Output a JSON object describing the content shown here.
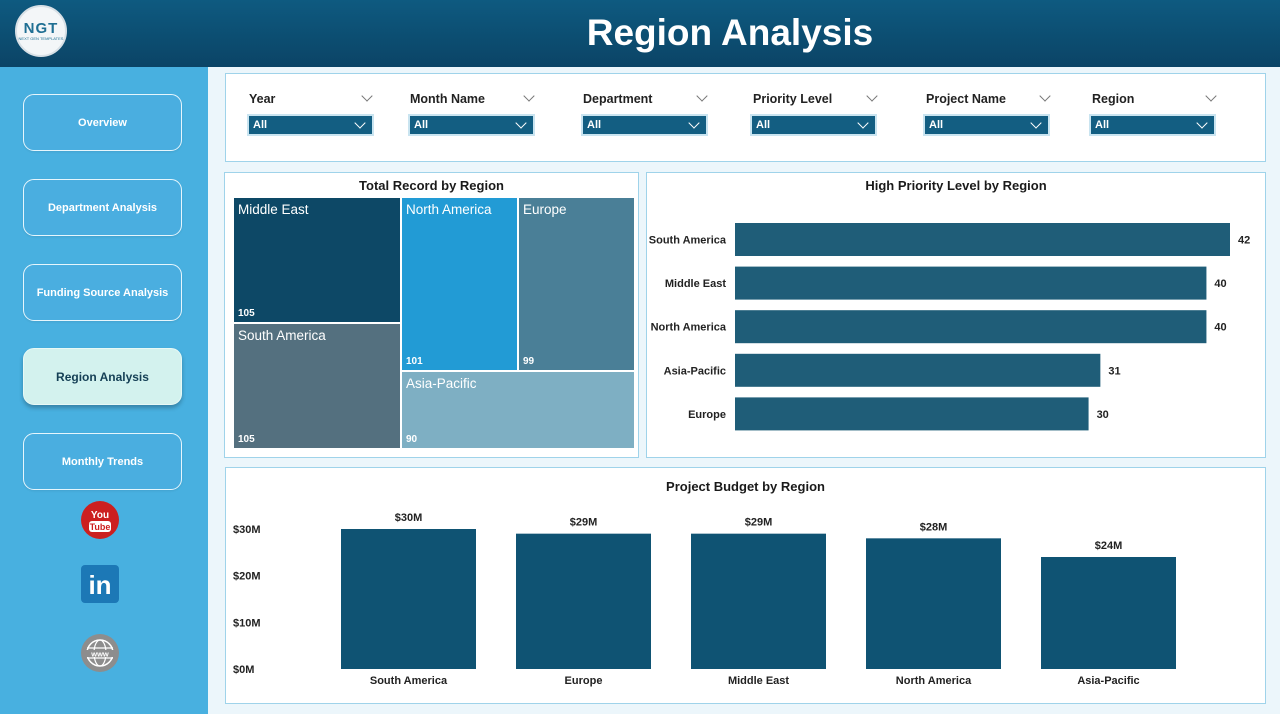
{
  "header": {
    "logo_text": "NGT",
    "logo_subtext": "NEXT GEN TEMPLATES",
    "title": "Region Analysis"
  },
  "sidebar": {
    "items": [
      {
        "label": "Overview",
        "active": false
      },
      {
        "label": "Department Analysis",
        "active": false
      },
      {
        "label": "Funding Source Analysis",
        "active": false
      },
      {
        "label": "Region Analysis",
        "active": true
      },
      {
        "label": "Monthly Trends",
        "active": false
      }
    ],
    "social": [
      {
        "icon": "youtube-icon",
        "text": "You Tube"
      },
      {
        "icon": "linkedin-icon",
        "text": "in"
      },
      {
        "icon": "website-icon",
        "text": "www"
      }
    ]
  },
  "filters": [
    {
      "label": "Year",
      "value": "All"
    },
    {
      "label": "Month Name",
      "value": "All"
    },
    {
      "label": "Department",
      "value": "All"
    },
    {
      "label": "Priority Level",
      "value": "All"
    },
    {
      "label": "Project Name",
      "value": "All"
    },
    {
      "label": "Region",
      "value": "All"
    }
  ],
  "treemap": {
    "title": "Total Record by Region",
    "tiles": [
      {
        "name": "Middle East",
        "value": "105",
        "color": "#0d4866"
      },
      {
        "name": "North America",
        "value": "101",
        "color": "#229bd5"
      },
      {
        "name": "Europe",
        "value": "99",
        "color": "#4a7f97"
      },
      {
        "name": "South America",
        "value": "105",
        "color": "#54707f"
      },
      {
        "name": "Asia-Pacific",
        "value": "90",
        "color": "#7eafc3"
      }
    ]
  },
  "chart_data": [
    {
      "type": "bar",
      "orientation": "horizontal",
      "title": "High Priority Level by Region",
      "categories": [
        "South America",
        "Middle East",
        "North America",
        "Asia-Pacific",
        "Europe"
      ],
      "values": [
        42,
        40,
        40,
        31,
        30
      ],
      "labels": [
        "42",
        "40",
        "40",
        "31",
        "30"
      ],
      "color": "#1f5d78",
      "xlim": [
        0,
        42
      ]
    },
    {
      "type": "bar",
      "title": "Project Budget by Region",
      "categories": [
        "South America",
        "Europe",
        "Middle East",
        "North America",
        "Asia-Pacific"
      ],
      "values": [
        30,
        29,
        29,
        28,
        24
      ],
      "labels": [
        "$30M",
        "$29M",
        "$29M",
        "$28M",
        "$24M"
      ],
      "yticks": [
        "$0M",
        "$10M",
        "$20M",
        "$30M"
      ],
      "ylim": [
        0,
        30
      ],
      "color": "#0f5373"
    }
  ]
}
